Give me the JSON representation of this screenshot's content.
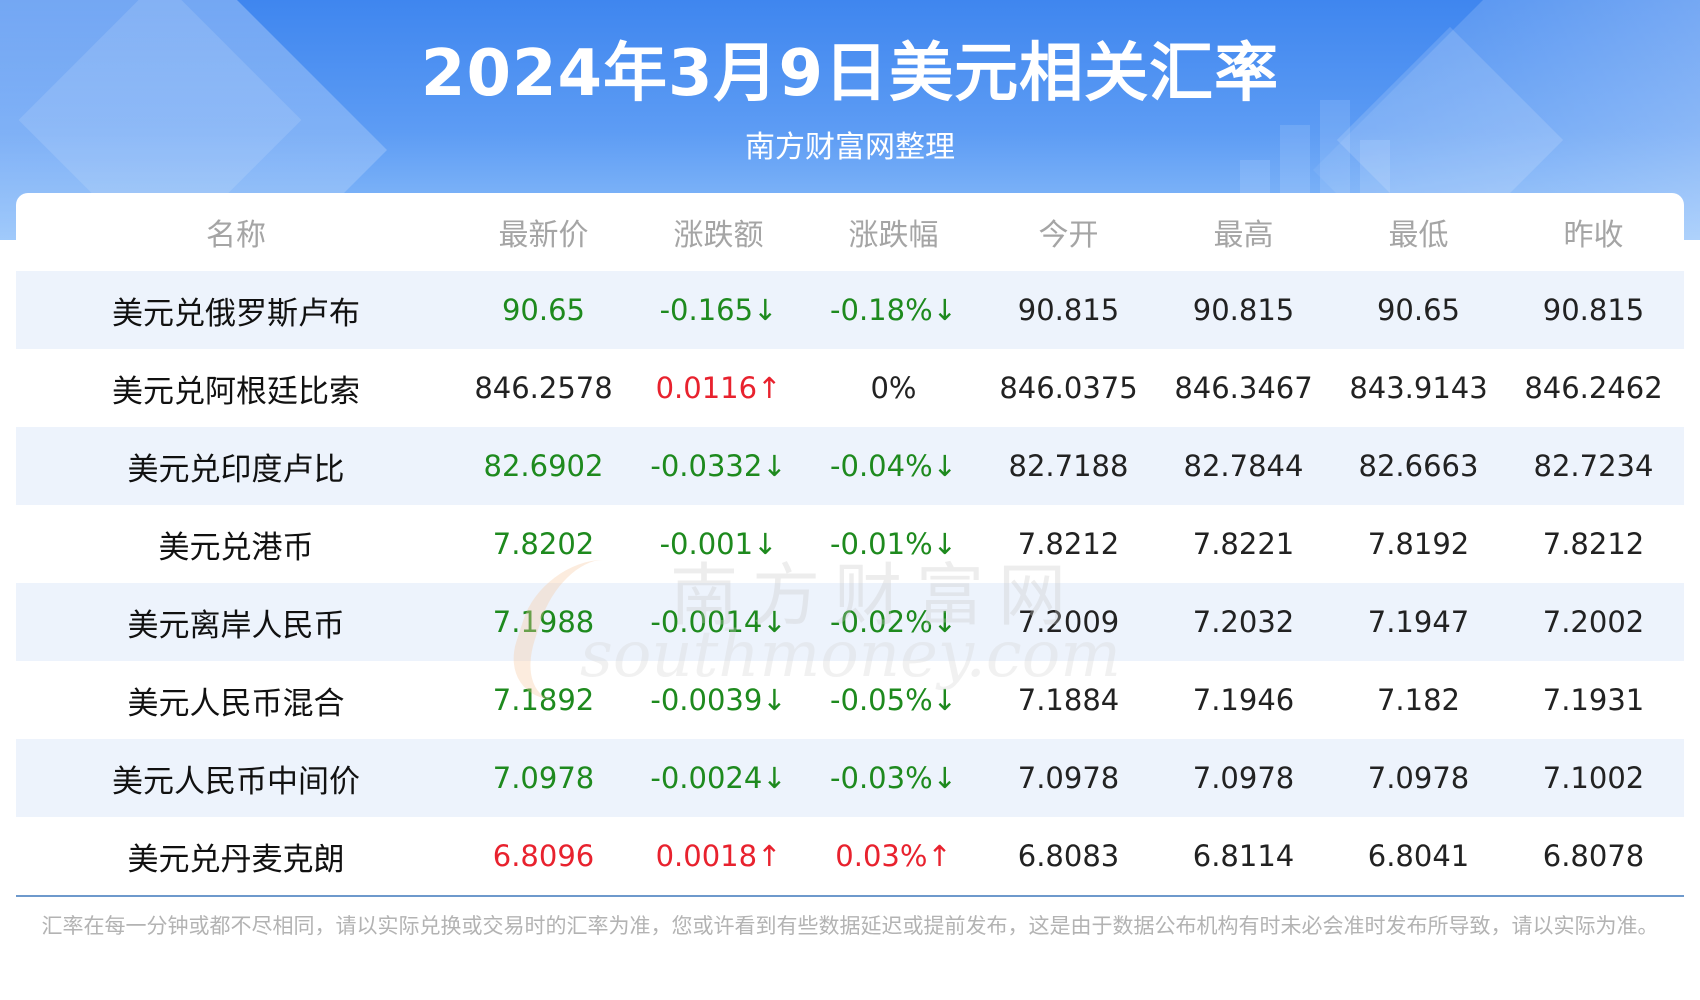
{
  "header": {
    "title": "2024年3月9日美元相关汇率",
    "subtitle": "南方财富网整理"
  },
  "table": {
    "columns": [
      "名称",
      "最新价",
      "涨跌额",
      "涨跌幅",
      "今开",
      "最高",
      "最低",
      "昨收"
    ],
    "rows": [
      {
        "name": "美元兑俄罗斯卢布",
        "latest": "90.65",
        "change": "-0.165↓",
        "change_pct": "-0.18%↓",
        "open": "90.815",
        "high": "90.815",
        "low": "90.65",
        "prev_close": "90.815",
        "trend": "down"
      },
      {
        "name": "美元兑阿根廷比索",
        "latest": "846.2578",
        "change": "0.0116↑",
        "change_pct": "0%",
        "open": "846.0375",
        "high": "846.3467",
        "low": "843.9143",
        "prev_close": "846.2462",
        "trend": "mixed"
      },
      {
        "name": "美元兑印度卢比",
        "latest": "82.6902",
        "change": "-0.0332↓",
        "change_pct": "-0.04%↓",
        "open": "82.7188",
        "high": "82.7844",
        "low": "82.6663",
        "prev_close": "82.7234",
        "trend": "down"
      },
      {
        "name": "美元兑港币",
        "latest": "7.8202",
        "change": "-0.001↓",
        "change_pct": "-0.01%↓",
        "open": "7.8212",
        "high": "7.8221",
        "low": "7.8192",
        "prev_close": "7.8212",
        "trend": "down"
      },
      {
        "name": "美元离岸人民币",
        "latest": "7.1988",
        "change": "-0.0014↓",
        "change_pct": "-0.02%↓",
        "open": "7.2009",
        "high": "7.2032",
        "low": "7.1947",
        "prev_close": "7.2002",
        "trend": "down"
      },
      {
        "name": "美元人民币混合",
        "latest": "7.1892",
        "change": "-0.0039↓",
        "change_pct": "-0.05%↓",
        "open": "7.1884",
        "high": "7.1946",
        "low": "7.182",
        "prev_close": "7.1931",
        "trend": "down"
      },
      {
        "name": "美元人民币中间价",
        "latest": "7.0978",
        "change": "-0.0024↓",
        "change_pct": "-0.03%↓",
        "open": "7.0978",
        "high": "7.0978",
        "low": "7.0978",
        "prev_close": "7.1002",
        "trend": "down"
      },
      {
        "name": "美元兑丹麦克朗",
        "latest": "6.8096",
        "change": "0.0018↑",
        "change_pct": "0.03%↑",
        "open": "6.8083",
        "high": "6.8114",
        "low": "6.8041",
        "prev_close": "6.8078",
        "trend": "up"
      }
    ]
  },
  "watermark": {
    "cn": "南方财富网",
    "en": "southmoney.com"
  },
  "footnote": "汇率在每一分钟或都不尽相同，请以实际兑换或交易时的汇率为准，您或许看到有些数据延迟或提前发布，这是由于数据公布机构有时未必会准时发布所导致，请以实际为准。",
  "colors": {
    "up": "#e8222e",
    "down": "#1e8a1e",
    "header_blue": "#3f86ef",
    "row_alt": "#edf3fc",
    "column_header_text": "#a5a5a5"
  }
}
